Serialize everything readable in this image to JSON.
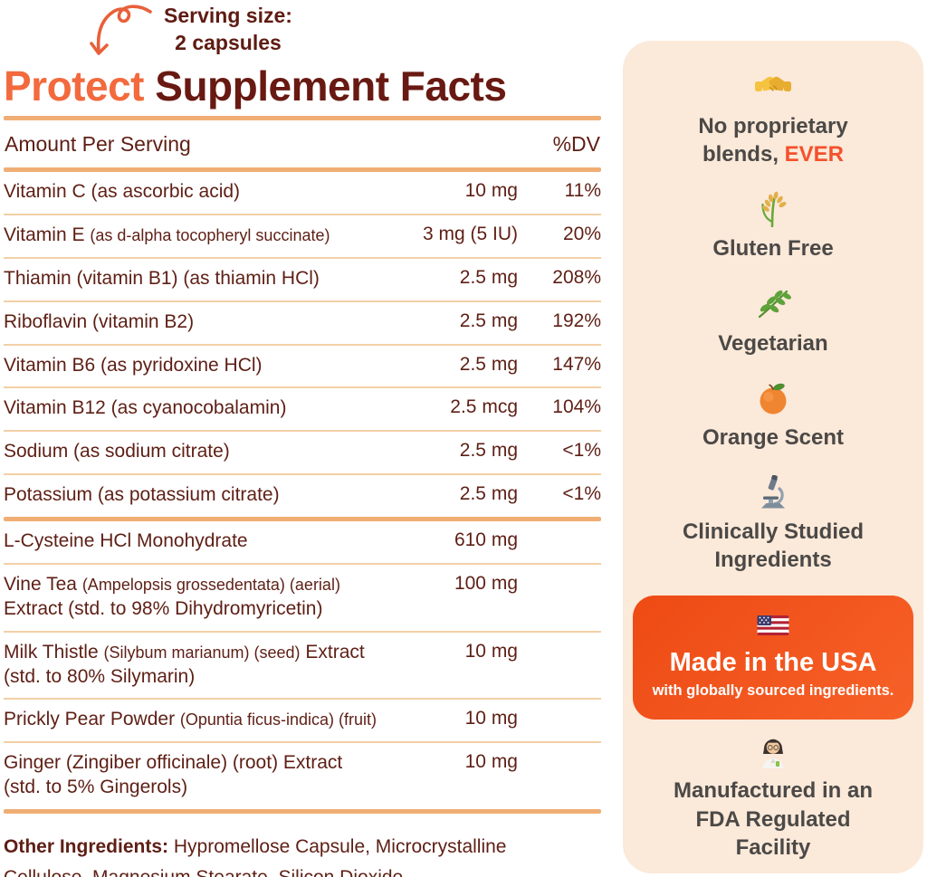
{
  "header": {
    "serving_line1": "Serving size:",
    "serving_line2": "2 capsules",
    "title_accent": "Protect",
    "title_rest": " Supplement Facts"
  },
  "table": {
    "amount_header": "Amount Per Serving",
    "dv_header": "%DV",
    "rows": [
      {
        "label": [
          {
            "t": "Vitamin C (as ascorbic acid)"
          }
        ],
        "amount": "10 mg",
        "dv": "11%",
        "after": "thin"
      },
      {
        "label": [
          {
            "t": "Vitamin E "
          },
          {
            "t": "(as d-alpha tocopheryl succinate)",
            "small": true
          }
        ],
        "amount": "3 mg (5 IU)",
        "dv": "20%",
        "after": "thin"
      },
      {
        "label": [
          {
            "t": "Thiamin (vitamin B1) (as thiamin HCl)"
          }
        ],
        "amount": "2.5 mg",
        "dv": "208%",
        "after": "thin"
      },
      {
        "label": [
          {
            "t": "Riboflavin (vitamin B2)"
          }
        ],
        "amount": "2.5 mg",
        "dv": "192%",
        "after": "thin"
      },
      {
        "label": [
          {
            "t": "Vitamin B6 (as pyridoxine HCl)"
          }
        ],
        "amount": "2.5 mg",
        "dv": "147%",
        "after": "thin"
      },
      {
        "label": [
          {
            "t": "Vitamin B12 (as cyanocobalamin)"
          }
        ],
        "amount": "2.5 mcg",
        "dv": "104%",
        "after": "thin"
      },
      {
        "label": [
          {
            "t": "Sodium (as sodium citrate)"
          }
        ],
        "amount": "2.5 mg",
        "dv": "<1%",
        "after": "thin"
      },
      {
        "label": [
          {
            "t": "Potassium (as potassium citrate)"
          }
        ],
        "amount": "2.5 mg",
        "dv": "<1%",
        "after": "thick"
      },
      {
        "label": [
          {
            "t": "L-Cysteine HCl Monohydrate"
          }
        ],
        "amount": "610 mg",
        "dv": "",
        "after": "thin"
      },
      {
        "label": [
          {
            "t": "Vine Tea "
          },
          {
            "t": "(Ampelopsis grossedentata) (aerial)",
            "small": true
          },
          {
            "br": true
          },
          {
            "t": "Extract (std. to 98% Dihydromyricetin)"
          }
        ],
        "amount": "100 mg",
        "dv": "",
        "after": "thin"
      },
      {
        "label": [
          {
            "t": "Milk Thistle "
          },
          {
            "t": "(Silybum marianum) (seed)",
            "small": true
          },
          {
            "t": " Extract"
          },
          {
            "br": true
          },
          {
            "t": "(std. to 80% Silymarin)"
          }
        ],
        "amount": "10 mg",
        "dv": "",
        "after": "thin"
      },
      {
        "label": [
          {
            "t": "Prickly Pear Powder "
          },
          {
            "t": "(Opuntia ficus-indica) (fruit)",
            "small": true
          }
        ],
        "amount": "10 mg",
        "dv": "",
        "after": "thin"
      },
      {
        "label": [
          {
            "t": "Ginger (Zingiber officinale) (root) Extract"
          },
          {
            "br": true
          },
          {
            "t": "(std. to 5% Gingerols)"
          }
        ],
        "amount": "10 mg",
        "dv": "",
        "after": "thick"
      }
    ],
    "other_label": "Other Ingredients:",
    "other_text": " Hypromellose Capsule, Microcrystalline Cellulose, Magnesium Stearate, Silicon Dioxide"
  },
  "sidebar": {
    "badges": [
      {
        "icon": "handshake-icon",
        "text": "No proprietary blends, ",
        "highlight": "EVER"
      },
      {
        "icon": "rice-sheaf-icon",
        "text": "Gluten Free"
      },
      {
        "icon": "herb-icon",
        "text": "Vegetarian"
      },
      {
        "icon": "tangerine-icon",
        "text": "Orange Scent"
      },
      {
        "icon": "microscope-icon",
        "text": "Clinically Studied Ingredients"
      }
    ],
    "usa_card": {
      "icon": "us-flag-icon",
      "title": "Made in the USA",
      "subtitle": "with globally sourced ingredients."
    },
    "fda_badge": {
      "icon": "scientist-icon",
      "text": "Manufactured in an FDA Regulated Facility"
    }
  },
  "colors": {
    "accent_orange": "#f26a3d",
    "maroon_text": "#5e1f15",
    "title_maroon": "#681912",
    "rule_thick": "#f0ae74",
    "rule_thin": "#f3d0a6",
    "sidebar_bg": "#fbe9d9",
    "sidebar_text": "#4b4947",
    "highlight_orange": "#f4502c",
    "usa_card_orange": "#f1511b"
  }
}
